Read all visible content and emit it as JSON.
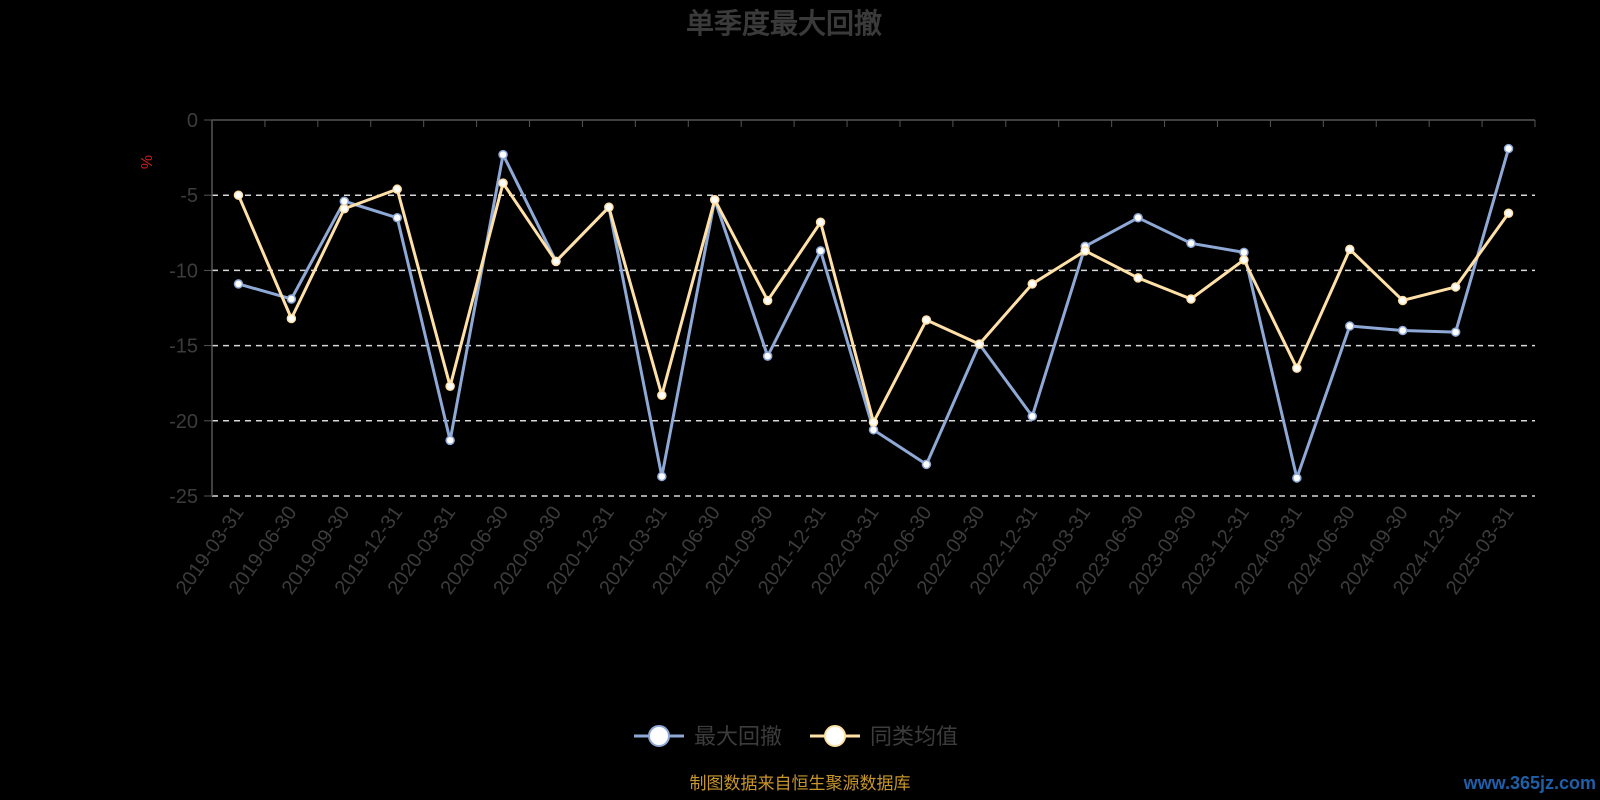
{
  "chart_data": {
    "type": "line",
    "title": "单季度最大回撤",
    "ylabel": "%",
    "ylim": [
      -25,
      0
    ],
    "yticks": [
      0,
      -5,
      -10,
      -15,
      -20,
      -25
    ],
    "grid": true,
    "legend_position": "bottom",
    "categories": [
      "2019-03-31",
      "2019-06-30",
      "2019-09-30",
      "2019-12-31",
      "2020-03-31",
      "2020-06-30",
      "2020-09-30",
      "2020-12-31",
      "2021-03-31",
      "2021-06-30",
      "2021-09-30",
      "2021-12-31",
      "2022-03-31",
      "2022-06-30",
      "2022-09-30",
      "2022-12-31",
      "2023-03-31",
      "2023-06-30",
      "2023-09-30",
      "2023-12-31",
      "2024-03-31",
      "2024-06-30",
      "2024-09-30",
      "2024-12-31",
      "2025-03-31"
    ],
    "series": [
      {
        "name": "最大回撤",
        "color": "#8fa9d6",
        "values": [
          -10.9,
          -11.9,
          -5.4,
          -6.5,
          -21.3,
          -2.3,
          -9.4,
          -5.8,
          -23.7,
          -5.3,
          -15.7,
          -8.7,
          -20.6,
          -22.9,
          -14.9,
          -19.7,
          -8.4,
          -6.5,
          -8.2,
          -8.8,
          -23.8,
          -13.7,
          -14.0,
          -14.1,
          -1.9
        ]
      },
      {
        "name": "同类均值",
        "color": "#ffe1a8",
        "values": [
          -5.0,
          -13.2,
          -5.9,
          -4.6,
          -17.7,
          -4.2,
          -9.4,
          -5.8,
          -18.3,
          -5.3,
          -12.0,
          -6.8,
          -20.1,
          -13.3,
          -14.9,
          -10.9,
          -8.7,
          -10.5,
          -11.9,
          -9.3,
          -16.5,
          -8.6,
          -12.0,
          -11.1,
          -6.2
        ]
      }
    ]
  },
  "footer": {
    "source": "制图数据来自恒生聚源数据库",
    "watermark": "www.365jz.com"
  }
}
